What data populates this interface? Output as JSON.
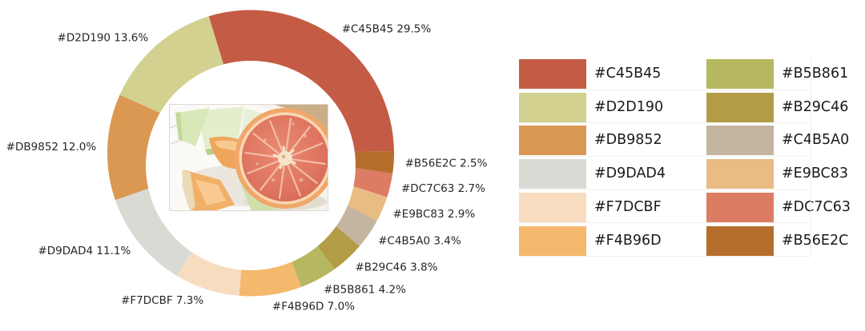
{
  "chart_data": {
    "type": "pie",
    "subtype": "donut",
    "title": "",
    "unit": "%",
    "direction": "clockwise",
    "start_angle_deg": 107,
    "inner_hole": true,
    "center_image_description": "Photo of sliced fruit on a white plate: half a pink grapefruit with honeydew and cantaloupe melon slices",
    "label_format": "{hex} {value}%",
    "slices": [
      {
        "hex": "#C45B45",
        "value": 29.5
      },
      {
        "hex": "#B56E2C",
        "value": 2.5
      },
      {
        "hex": "#DC7C63",
        "value": 2.7
      },
      {
        "hex": "#E9BC83",
        "value": 2.9
      },
      {
        "hex": "#C4B5A0",
        "value": 3.4
      },
      {
        "hex": "#B29C46",
        "value": 3.8
      },
      {
        "hex": "#B5B861",
        "value": 4.2
      },
      {
        "hex": "#F4B96D",
        "value": 7.0
      },
      {
        "hex": "#F7DCBF",
        "value": 7.3
      },
      {
        "hex": "#D9DAD4",
        "value": 11.1
      },
      {
        "hex": "#DB9852",
        "value": 12.0
      },
      {
        "hex": "#D2D190",
        "value": 13.6
      }
    ]
  },
  "legend": {
    "columns": [
      [
        "#C45B45",
        "#D2D190",
        "#DB9852",
        "#D9DAD4",
        "#F7DCBF",
        "#F4B96D"
      ],
      [
        "#B5B861",
        "#B29C46",
        "#C4B5A0",
        "#E9BC83",
        "#DC7C63",
        "#B56E2C"
      ]
    ]
  },
  "colors": {
    "background": "#ffffff",
    "label_text": "#262626",
    "legend_text": "#1a1a1a"
  }
}
